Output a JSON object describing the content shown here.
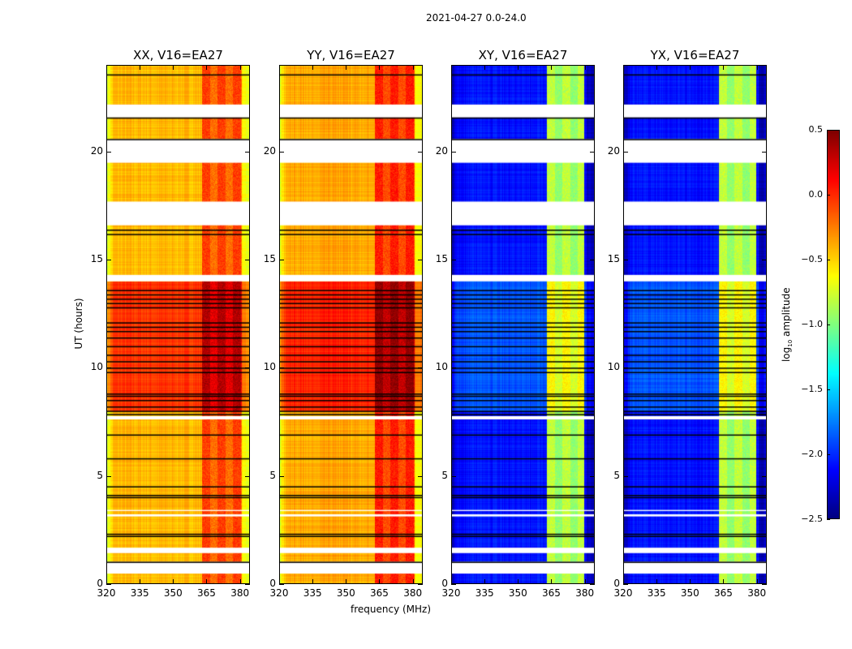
{
  "chart_data": {
    "type": "heatmap",
    "title": "2021-04-27 0.0-24.0",
    "xlabel": "frequency (MHz)",
    "ylabel": "UT (hours)",
    "xlim": [
      320,
      384.5
    ],
    "ylim": [
      0,
      24
    ],
    "x_ticks": [
      "320",
      "335",
      "350",
      "365",
      "380"
    ],
    "x_tick_values": [
      320,
      335,
      350,
      365,
      380
    ],
    "y_ticks": [
      "0",
      "5",
      "10",
      "15",
      "20"
    ],
    "y_tick_values": [
      0,
      5,
      10,
      15,
      20
    ],
    "colormap": "jet",
    "colorbar": {
      "label": "log10 amplitude",
      "label_main": "log",
      "label_sub": "10",
      "label_tail": " amplitude",
      "range": [
        -2.5,
        0.5
      ],
      "ticks": [
        "0.5",
        "0.0",
        "−0.5",
        "−1.0",
        "−1.5",
        "−2.0",
        "−2.5"
      ],
      "tick_values": [
        0.5,
        0,
        -0.5,
        -1,
        -1.5,
        -2,
        -2.5
      ]
    },
    "flagged_hours": [
      [
        0.45,
        1.0
      ],
      [
        1.4,
        1.65
      ],
      [
        3.1,
        3.2
      ],
      [
        3.35,
        3.4
      ],
      [
        7.6,
        7.75
      ],
      [
        14.0,
        14.3
      ],
      [
        16.6,
        17.7
      ],
      [
        19.5,
        20.6
      ],
      [
        21.6,
        22.2
      ]
    ],
    "dropout_hours": [
      1.0,
      2.2,
      2.3,
      4.0,
      4.1,
      4.5,
      5.8,
      6.9,
      7.85,
      8.0,
      8.2,
      8.5,
      8.7,
      8.8,
      9.8,
      10.0,
      10.3,
      10.6,
      11.0,
      11.4,
      11.7,
      11.9,
      12.1,
      12.8,
      13.0,
      13.2,
      13.4,
      13.6,
      16.2,
      16.4,
      20.6,
      21.6,
      23.6
    ],
    "panels": [
      {
        "title": "XX, V16=EA27",
        "base": -0.55,
        "band": -0.15,
        "band_range": [
          363,
          381
        ],
        "night_boost": 0.4
      },
      {
        "title": "YY, V16=EA27",
        "base": -0.5,
        "band": -0.05,
        "band_range": [
          363,
          381
        ],
        "night_boost": 0.4
      },
      {
        "title": "XY, V16=EA27",
        "base": -2.2,
        "band": -0.9,
        "band_range": [
          363,
          380
        ],
        "night_boost": 0.2
      },
      {
        "title": "YX, V16=EA27",
        "base": -2.2,
        "band": -0.9,
        "band_range": [
          363,
          380
        ],
        "night_boost": 0.2
      }
    ]
  }
}
